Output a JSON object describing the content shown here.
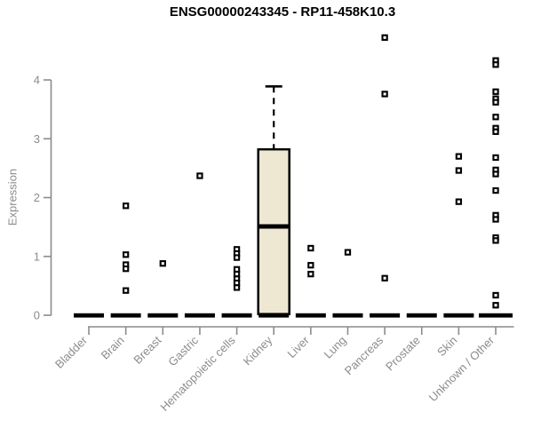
{
  "title": "ENSG00000243345 - RP11-458K10.3",
  "chart_data": {
    "type": "boxplot",
    "title": "ENSG00000243345 - RP11-458K10.3",
    "xlabel": "",
    "ylabel": "Expression",
    "ylim": [
      0,
      4
    ],
    "yticks": [
      0,
      1,
      2,
      3,
      4
    ],
    "grid": false,
    "legend": "none",
    "categories": [
      "Bladder",
      "Brain",
      "Breast",
      "Gastric",
      "Hematopoietic cells",
      "Kidney",
      "Liver",
      "Lung",
      "Pancreas",
      "Prostate",
      "Skin",
      "Unknown / Other"
    ],
    "series": [
      {
        "category": "Bladder",
        "zero_cluster": true,
        "dash_width": 34,
        "points": []
      },
      {
        "category": "Brain",
        "zero_cluster": true,
        "dash_width": 34,
        "points": [
          1.86,
          1.03,
          0.86,
          0.79,
          0.42
        ]
      },
      {
        "category": "Breast",
        "zero_cluster": true,
        "dash_width": 34,
        "points": [
          0.88
        ]
      },
      {
        "category": "Gastric",
        "zero_cluster": true,
        "dash_width": 34,
        "points": [
          2.37
        ]
      },
      {
        "category": "Hematopoietic cells",
        "zero_cluster": true,
        "dash_width": 34,
        "points": [
          1.12,
          1.05,
          0.98,
          0.78,
          0.7,
          0.62,
          0.55,
          0.47
        ]
      },
      {
        "category": "Kidney",
        "zero_cluster": true,
        "dash_width": 34,
        "points": []
      },
      {
        "category": "Liver",
        "zero_cluster": true,
        "dash_width": 34,
        "points": [
          1.14,
          0.85,
          0.7
        ]
      },
      {
        "category": "Lung",
        "zero_cluster": true,
        "dash_width": 34,
        "points": [
          1.07
        ]
      },
      {
        "category": "Pancreas",
        "zero_cluster": true,
        "dash_width": 34,
        "points": [
          4.72,
          3.76,
          0.63
        ]
      },
      {
        "category": "Prostate",
        "zero_cluster": true,
        "dash_width": 34,
        "points": []
      },
      {
        "category": "Skin",
        "zero_cluster": true,
        "dash_width": 34,
        "points": [
          2.7,
          2.46,
          1.93
        ]
      },
      {
        "category": "Unknown / Other",
        "zero_cluster": true,
        "dash_width": 38,
        "points": [
          4.33,
          4.26,
          3.8,
          3.68,
          3.62,
          3.37,
          3.18,
          3.12,
          2.68,
          2.47,
          2.4,
          2.12,
          1.7,
          1.63,
          1.32,
          1.27,
          0.34,
          0.17
        ]
      }
    ],
    "box": {
      "category": "Kidney",
      "q1": 0.02,
      "median": 1.51,
      "q3": 2.82,
      "whisker_low": 0.02,
      "whisker_high": 3.89
    },
    "colors": {
      "axis": "#8c8c8c",
      "tick_text": "#8c8c8c",
      "title_text": "#000000",
      "box_fill": "#EEE8D2",
      "box_stroke": "#000000",
      "marker": "#000000",
      "zero_bar": "#000000",
      "background": "#ffffff"
    }
  }
}
